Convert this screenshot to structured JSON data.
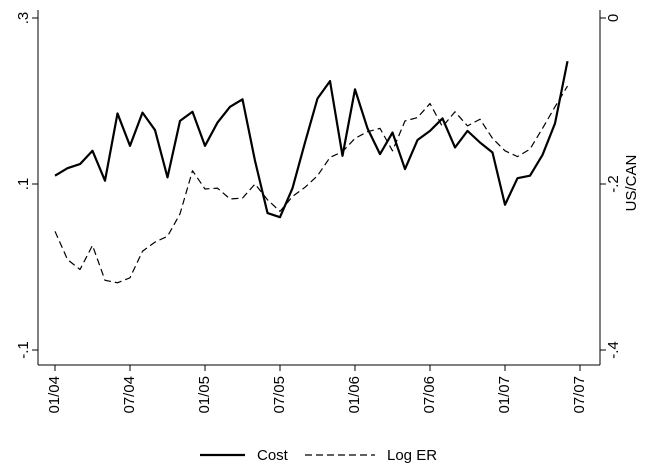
{
  "chart_data": {
    "type": "line",
    "categories": [
      "01/04",
      null,
      null,
      null,
      null,
      null,
      "07/04",
      null,
      null,
      null,
      null,
      null,
      "01/05",
      null,
      null,
      null,
      null,
      null,
      "07/05",
      null,
      null,
      null,
      null,
      null,
      "01/06",
      null,
      null,
      null,
      null,
      null,
      "07/06",
      null,
      null,
      null,
      null,
      null,
      "01/07",
      null,
      null,
      null,
      null,
      null,
      "07/07"
    ],
    "series": [
      {
        "name": "Cost",
        "color": "#000000",
        "dash": "solid",
        "axis": "y",
        "values": [
          0.11,
          0.119,
          0.124,
          0.14,
          0.104,
          0.185,
          0.146,
          0.186,
          0.165,
          0.108,
          0.176,
          0.187,
          0.146,
          0.174,
          0.193,
          0.202,
          0.128,
          0.065,
          0.06,
          0.095,
          0.15,
          0.203,
          0.224,
          0.134,
          0.214,
          0.167,
          0.136,
          0.162,
          0.118,
          0.153,
          0.164,
          0.179,
          0.144,
          0.164,
          0.15,
          0.138,
          0.075,
          0.107,
          0.11,
          0.135,
          0.173,
          0.248,
          null
        ]
      },
      {
        "name": "Log ER",
        "color": "#000000",
        "dash": "dashed",
        "axis": "y2",
        "values": [
          -0.257,
          -0.291,
          -0.303,
          -0.274,
          -0.316,
          -0.319,
          -0.313,
          -0.281,
          -0.27,
          -0.263,
          -0.236,
          -0.184,
          -0.206,
          -0.205,
          -0.218,
          -0.217,
          -0.2,
          -0.219,
          -0.233,
          -0.215,
          -0.204,
          -0.19,
          -0.168,
          -0.161,
          -0.145,
          -0.137,
          -0.133,
          -0.16,
          -0.124,
          -0.12,
          -0.103,
          -0.131,
          -0.113,
          -0.13,
          -0.122,
          -0.145,
          -0.16,
          -0.167,
          -0.158,
          -0.133,
          -0.107,
          -0.082,
          null
        ]
      }
    ],
    "ylim": [
      -0.1,
      0.3
    ],
    "yticks": [
      {
        "value": -0.1,
        "label": "-.1"
      },
      {
        "value": 0.1,
        "label": ".1"
      },
      {
        "value": 0.3,
        "label": ".3"
      }
    ],
    "y2lim": [
      -0.4,
      0
    ],
    "y2ticks": [
      {
        "value": -0.4,
        "label": "-.4"
      },
      {
        "value": -0.2,
        "label": "-.2"
      },
      0
    ],
    "y2label": "US/CAN",
    "legend": "bottom"
  }
}
